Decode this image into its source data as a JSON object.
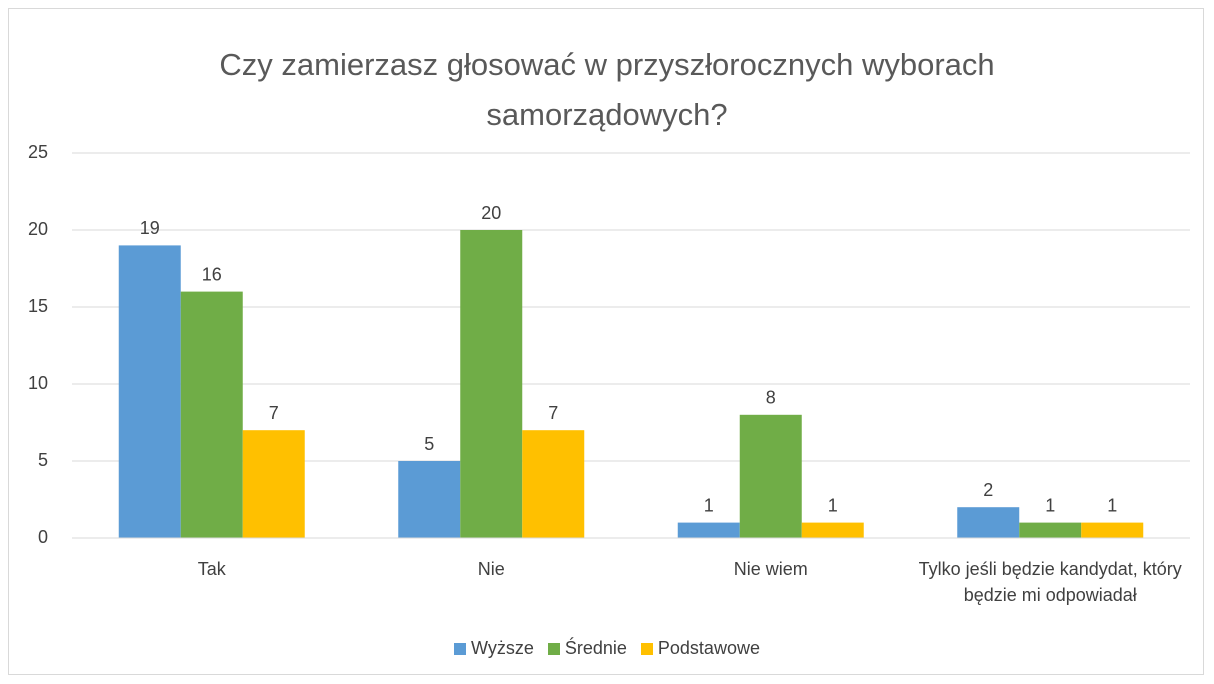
{
  "chart_data": {
    "type": "bar",
    "title": "Czy zamierzasz głosować w przyszłorocznych wyborach samorządowych?",
    "categories": [
      "Tak",
      "Nie",
      "Nie wiem",
      "Tylko jeśli będzie kandydat, który będzie mi odpowiadał"
    ],
    "series": [
      {
        "name": "Wyższe",
        "color": "#5b9bd5",
        "values": [
          19,
          5,
          1,
          2
        ]
      },
      {
        "name": "Średnie",
        "color": "#70ad47",
        "values": [
          16,
          20,
          8,
          1
        ]
      },
      {
        "name": "Podstawowe",
        "color": "#ffc000",
        "values": [
          7,
          7,
          1,
          1
        ]
      }
    ],
    "ylim": [
      0,
      25
    ],
    "yticks": [
      0,
      5,
      10,
      15,
      20,
      25
    ],
    "grid": true,
    "legend": "bottom"
  }
}
